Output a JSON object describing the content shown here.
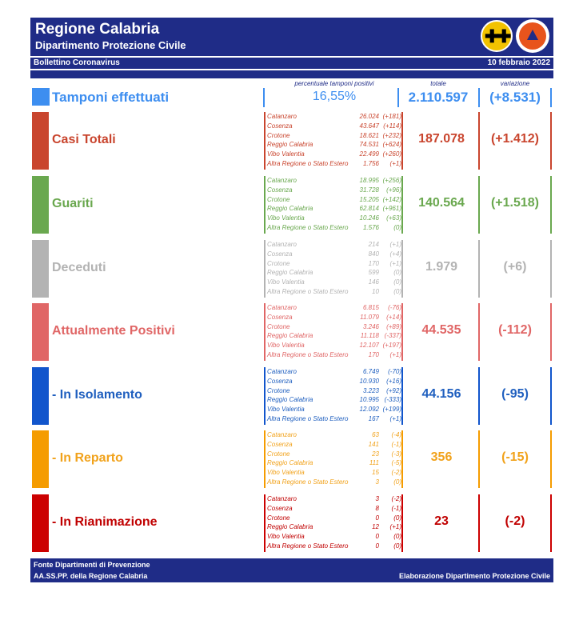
{
  "header": {
    "title": "Regione Calabria",
    "subtitle": "Dipartimento Protezione Civile",
    "bulletin": "Bollettino Coronavirus",
    "date": "10 febbraio 2022"
  },
  "columns": {
    "percent": "percentuale tamponi positivi",
    "total": "totale",
    "variation": "variazione"
  },
  "tamponi": {
    "label": "Tamponi effettuati",
    "percent": "16,55%",
    "total": "2.110.597",
    "variation": "(+8.531)",
    "color": "#3d8ef0"
  },
  "sections": [
    {
      "label": "Casi Totali",
      "color": "#c9452e",
      "bar": "#c9452e",
      "total": "187.078",
      "variation": "(+1.412)",
      "rows": [
        {
          "province": "Catanzaro",
          "value": "26.024",
          "delta": "(+181)"
        },
        {
          "province": "Cosenza",
          "value": "43.647",
          "delta": "(+114)"
        },
        {
          "province": "Crotone",
          "value": "18.621",
          "delta": "(+232)"
        },
        {
          "province": "Reggio Calabria",
          "value": "74.531",
          "delta": "(+624)"
        },
        {
          "province": "Vibo Valentia",
          "value": "22.499",
          "delta": "(+260)"
        },
        {
          "province": "Altra Regione o Stato Estero",
          "value": "1.756",
          "delta": "(+1)"
        }
      ]
    },
    {
      "label": "Guariti",
      "color": "#6aa84f",
      "bar": "#6aa84f",
      "total": "140.564",
      "variation": "(+1.518)",
      "rows": [
        {
          "province": "Catanzaro",
          "value": "18.995",
          "delta": "(+256)"
        },
        {
          "province": "Cosenza",
          "value": "31.728",
          "delta": "(+96)"
        },
        {
          "province": "Crotone",
          "value": "15.205",
          "delta": "(+142)"
        },
        {
          "province": "Reggio Calabria",
          "value": "62.814",
          "delta": "(+961)"
        },
        {
          "province": "Vibo Valentia",
          "value": "10.246",
          "delta": "(+63)"
        },
        {
          "province": "Altra Regione o Stato Estero",
          "value": "1.576",
          "delta": "(0)"
        }
      ]
    },
    {
      "label": "Deceduti",
      "color": "#b3b3b3",
      "bar": "#b3b3b3",
      "total": "1.979",
      "variation": "(+6)",
      "rows": [
        {
          "province": "Catanzaro",
          "value": "214",
          "delta": "(+1)"
        },
        {
          "province": "Cosenza",
          "value": "840",
          "delta": "(+4)"
        },
        {
          "province": "Crotone",
          "value": "170",
          "delta": "(+1)"
        },
        {
          "province": "Reggio Calabria",
          "value": "599",
          "delta": "(0)"
        },
        {
          "province": "Vibo Valentia",
          "value": "146",
          "delta": "(0)"
        },
        {
          "province": "Altra Regione o Stato Estero",
          "value": "10",
          "delta": "(0)"
        }
      ]
    },
    {
      "label": "Attualmente Positivi",
      "color": "#e06666",
      "bar": "#e06666",
      "total": "44.535",
      "variation": "(-112)",
      "rows": [
        {
          "province": "Catanzaro",
          "value": "6.815",
          "delta": "(-76)"
        },
        {
          "province": "Cosenza",
          "value": "11.079",
          "delta": "(+14)"
        },
        {
          "province": "Crotone",
          "value": "3.246",
          "delta": "(+89)"
        },
        {
          "province": "Reggio Calabria",
          "value": "11.118",
          "delta": "(-337)"
        },
        {
          "province": "Vibo Valentia",
          "value": "12.107",
          "delta": "(+197)"
        },
        {
          "province": "Altra Regione o Stato Estero",
          "value": "170",
          "delta": "(+1)"
        }
      ]
    },
    {
      "label": " - In Isolamento",
      "color": "#1f5fbf",
      "bar": "#1155cc",
      "total": "44.156",
      "variation": "(-95)",
      "rows": [
        {
          "province": "Catanzaro",
          "value": "6.749",
          "delta": "(-70)"
        },
        {
          "province": "Cosenza",
          "value": "10.930",
          "delta": "(+16)"
        },
        {
          "province": "Crotone",
          "value": "3.223",
          "delta": "(+92)"
        },
        {
          "province": "Reggio Calabria",
          "value": "10.995",
          "delta": "(-333)"
        },
        {
          "province": "Vibo Valentia",
          "value": "12.092",
          "delta": "(+199)"
        },
        {
          "province": "Altra Regione o Stato Estero",
          "value": "167",
          "delta": "(+1)"
        }
      ]
    },
    {
      "label": " - In Reparto",
      "color": "#f1a21b",
      "bar": "#f59c00",
      "total": "356",
      "variation": "(-15)",
      "rows": [
        {
          "province": "Catanzaro",
          "value": "63",
          "delta": "(-4)"
        },
        {
          "province": "Cosenza",
          "value": "141",
          "delta": "(-1)"
        },
        {
          "province": "Crotone",
          "value": "23",
          "delta": "(-3)"
        },
        {
          "province": "Reggio Calabria",
          "value": "111",
          "delta": "(-5)"
        },
        {
          "province": "Vibo Valentia",
          "value": "15",
          "delta": "(-2)"
        },
        {
          "province": "Altra Regione o Stato Estero",
          "value": "3",
          "delta": "(0)"
        }
      ]
    },
    {
      "label": " - In Rianimazione",
      "color": "#c00000",
      "bar": "#cc0000",
      "total": "23",
      "variation": "(-2)",
      "rows": [
        {
          "province": "Catanzaro",
          "value": "3",
          "delta": "(-2)"
        },
        {
          "province": "Cosenza",
          "value": "8",
          "delta": "(-1)"
        },
        {
          "province": "Crotone",
          "value": "0",
          "delta": "(0)"
        },
        {
          "province": "Reggio Calabria",
          "value": "12",
          "delta": "(+1)"
        },
        {
          "province": "Vibo Valentia",
          "value": "0",
          "delta": "(0)"
        },
        {
          "province": "Altra Regione o Stato Estero",
          "value": "0",
          "delta": "(0)"
        }
      ]
    }
  ],
  "footer": {
    "source_line1": "Fonte Dipartimenti di Prevenzione",
    "source_line2": "AA.SS.PP.  della Regione Calabria",
    "credit": "Elaborazione Dipartimento Protezione Civile"
  },
  "logos": {
    "left": "calabria-crest-icon",
    "right": "protezione-civile-logo-icon"
  }
}
